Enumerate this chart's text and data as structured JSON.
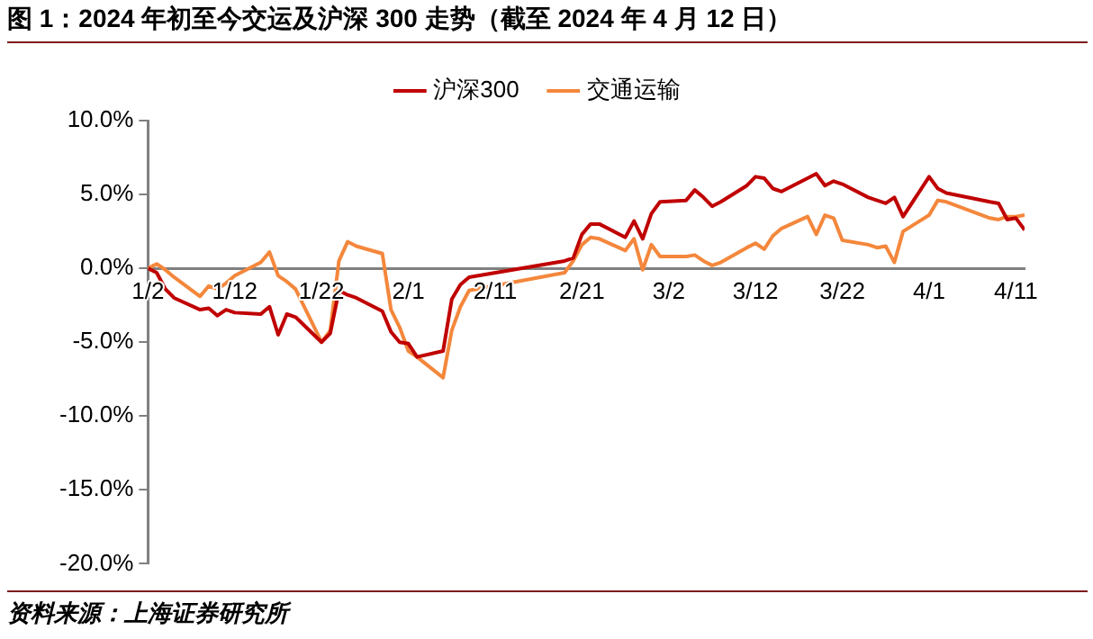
{
  "chart_data": {
    "type": "line",
    "title": "图 1：2024 年初至今交运及沪深 300 走势（截至 2024 年 4 月 12 日）",
    "x": [
      "2024-01-02",
      "2024-01-03",
      "2024-01-04",
      "2024-01-05",
      "2024-01-08",
      "2024-01-09",
      "2024-01-10",
      "2024-01-11",
      "2024-01-12",
      "2024-01-15",
      "2024-01-16",
      "2024-01-17",
      "2024-01-18",
      "2024-01-19",
      "2024-01-22",
      "2024-01-23",
      "2024-01-24",
      "2024-01-25",
      "2024-01-26",
      "2024-01-29",
      "2024-01-30",
      "2024-01-31",
      "2024-02-01",
      "2024-02-02",
      "2024-02-05",
      "2024-02-06",
      "2024-02-07",
      "2024-02-08",
      "2024-02-19",
      "2024-02-20",
      "2024-02-21",
      "2024-02-22",
      "2024-02-23",
      "2024-02-26",
      "2024-02-27",
      "2024-02-28",
      "2024-02-29",
      "2024-03-01",
      "2024-03-04",
      "2024-03-05",
      "2024-03-06",
      "2024-03-07",
      "2024-03-08",
      "2024-03-11",
      "2024-03-12",
      "2024-03-13",
      "2024-03-14",
      "2024-03-15",
      "2024-03-18",
      "2024-03-19",
      "2024-03-20",
      "2024-03-21",
      "2024-03-22",
      "2024-03-25",
      "2024-03-26",
      "2024-03-27",
      "2024-03-28",
      "2024-03-29",
      "2024-04-01",
      "2024-04-02",
      "2024-04-03",
      "2024-04-08",
      "2024-04-09",
      "2024-04-10",
      "2024-04-11",
      "2024-04-12"
    ],
    "series": [
      {
        "name": "沪深300",
        "color": "#c00000",
        "values": [
          0,
          -0.3,
          -1.4,
          -2.0,
          -2.8,
          -2.7,
          -3.2,
          -2.8,
          -3.0,
          -3.1,
          -2.6,
          -4.5,
          -3.1,
          -3.3,
          -5.0,
          -4.4,
          -1.5,
          -1.8,
          -2.0,
          -2.9,
          -4.3,
          -5.0,
          -5.1,
          -6.0,
          -5.6,
          -2.1,
          -1.1,
          -0.6,
          0.5,
          0.7,
          2.3,
          3.0,
          3.0,
          2.1,
          3.2,
          2.0,
          3.7,
          4.5,
          4.6,
          5.3,
          4.8,
          4.2,
          4.5,
          5.6,
          6.2,
          6.1,
          5.4,
          5.2,
          6.1,
          6.4,
          5.6,
          5.9,
          5.7,
          4.8,
          4.6,
          4.4,
          4.8,
          3.5,
          6.2,
          5.4,
          5.1,
          4.5,
          4.4,
          3.3,
          3.4,
          2.6
        ]
      },
      {
        "name": "交通运输",
        "color": "#f4873c",
        "values": [
          0,
          0.3,
          -0.1,
          -0.6,
          -1.9,
          -1.2,
          -1.4,
          -1.0,
          -0.5,
          0.4,
          1.1,
          -0.5,
          -0.9,
          -1.4,
          -5.0,
          -4.2,
          0.5,
          1.8,
          1.5,
          1.0,
          -2.8,
          -4.0,
          -5.6,
          -6.0,
          -7.4,
          -4.2,
          -2.6,
          -1.5,
          -0.3,
          0.5,
          1.6,
          2.1,
          2.0,
          1.2,
          2.0,
          -0.1,
          1.6,
          0.8,
          0.8,
          0.9,
          0.5,
          0.2,
          0.4,
          1.4,
          1.7,
          1.3,
          2.2,
          2.7,
          3.5,
          2.3,
          3.6,
          3.4,
          1.9,
          1.6,
          1.4,
          1.5,
          0.4,
          2.5,
          3.6,
          4.6,
          4.5,
          3.4,
          3.3,
          3.5,
          3.5,
          3.6
        ]
      }
    ],
    "xlim": [
      "2024-01-02",
      "2024-04-12"
    ],
    "xticks": [
      {
        "value": "2024-01-02",
        "label": "1/2"
      },
      {
        "value": "2024-01-12",
        "label": "1/12"
      },
      {
        "value": "2024-01-22",
        "label": "1/22"
      },
      {
        "value": "2024-02-01",
        "label": "2/1"
      },
      {
        "value": "2024-02-11",
        "label": "2/11"
      },
      {
        "value": "2024-02-21",
        "label": "2/21"
      },
      {
        "value": "2024-03-02",
        "label": "3/2"
      },
      {
        "value": "2024-03-12",
        "label": "3/12"
      },
      {
        "value": "2024-03-22",
        "label": "3/22"
      },
      {
        "value": "2024-04-01",
        "label": "4/1"
      },
      {
        "value": "2024-04-11",
        "label": "4/11"
      }
    ],
    "ylim": [
      -20,
      10
    ],
    "yticks": [
      {
        "value": -20,
        "label": "-20.0%"
      },
      {
        "value": -15,
        "label": "-15.0%"
      },
      {
        "value": -10,
        "label": "-10.0%"
      },
      {
        "value": -5,
        "label": "-5.0%"
      },
      {
        "value": 0,
        "label": "0.0%"
      },
      {
        "value": 5,
        "label": "5.0%"
      },
      {
        "value": 10,
        "label": "10.0%"
      }
    ],
    "grid": false,
    "legend": "top",
    "marker": "none",
    "line_style": "solid",
    "annotations": [
      "资料来源：上海证券研究所"
    ]
  }
}
